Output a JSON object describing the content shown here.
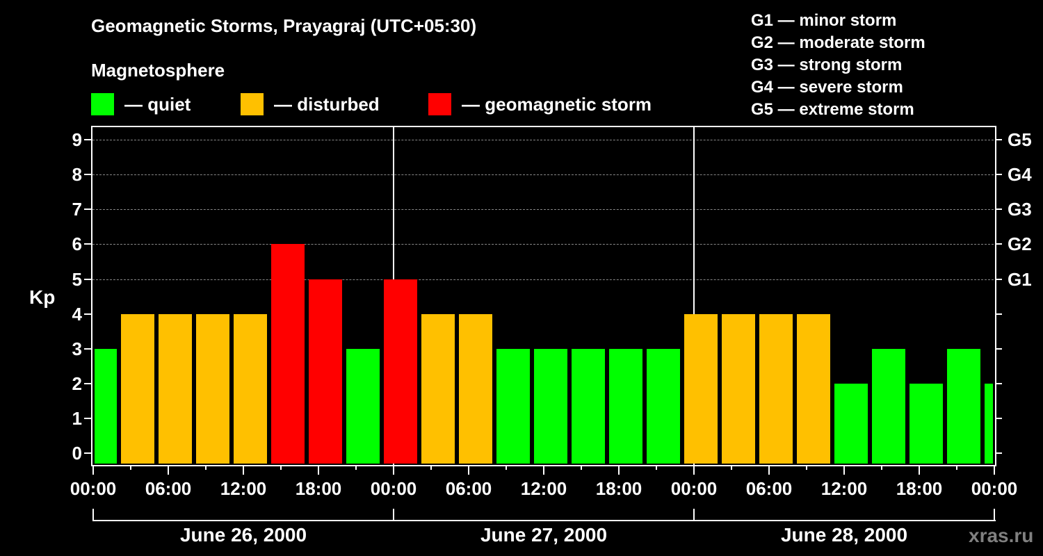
{
  "header": {
    "title": "Geomagnetic Storms, Prayagraj (UTC+05:30)",
    "subtitle": "Magnetosphere"
  },
  "legend": {
    "items": [
      {
        "label": "— quiet",
        "color": "#00ff00"
      },
      {
        "label": "— disturbed",
        "color": "#ffc000"
      },
      {
        "label": "— geomagnetic storm",
        "color": "#ff0000"
      }
    ]
  },
  "g_legend": [
    "G1 — minor storm",
    "G2 — moderate storm",
    "G3 — strong storm",
    "G4 — severe storm",
    "G5 — extreme storm"
  ],
  "axes": {
    "ylabel": "Kp",
    "yticks": [
      "0",
      "1",
      "2",
      "3",
      "4",
      "5",
      "6",
      "7",
      "8",
      "9"
    ],
    "right_ticks": [
      "G1",
      "G2",
      "G3",
      "G4",
      "G5"
    ],
    "xticks": [
      "00:00",
      "06:00",
      "12:00",
      "18:00",
      "00:00",
      "06:00",
      "12:00",
      "18:00",
      "00:00",
      "06:00",
      "12:00",
      "18:00",
      "00:00"
    ],
    "days": [
      "June 26, 2000",
      "June 27, 2000",
      "June 28, 2000"
    ]
  },
  "watermark": "xras.ru",
  "chart_data": {
    "type": "bar",
    "title": "Geomagnetic Storms, Prayagraj (UTC+05:30)",
    "subtitle": "Magnetosphere",
    "xlabel": "",
    "ylabel": "Kp",
    "ylim": [
      0,
      9
    ],
    "grid": true,
    "legend_position": "top",
    "legend": [
      "quiet",
      "disturbed",
      "geomagnetic storm"
    ],
    "right_axis": {
      "G1": 5,
      "G2": 6,
      "G3": 7,
      "G4": 8,
      "G5": 9
    },
    "x_range": [
      "June 26, 2000 00:00",
      "June 29, 2000 00:00"
    ],
    "categories": [
      "Jun26 ~02:30",
      "Jun26 ~05:30",
      "Jun26 ~08:30",
      "Jun26 ~11:30",
      "Jun26 ~14:30",
      "Jun26 ~17:30",
      "Jun26 ~20:30",
      "Jun26 ~23:30",
      "Jun27 ~02:30",
      "Jun27 ~05:30",
      "Jun27 ~08:30",
      "Jun27 ~11:30",
      "Jun27 ~14:30",
      "Jun27 ~17:30",
      "Jun27 ~20:30",
      "Jun27 ~23:30",
      "Jun28 ~02:30",
      "Jun28 ~05:30",
      "Jun28 ~08:30",
      "Jun28 ~11:30",
      "Jun28 ~14:30",
      "Jun28 ~17:30",
      "Jun28 ~20:30",
      "Jun28 ~23:30"
    ],
    "values": [
      3,
      4,
      4,
      4,
      4,
      6,
      5,
      3,
      5,
      4,
      4,
      3,
      3,
      3,
      3,
      3,
      4,
      4,
      4,
      4,
      2,
      3,
      2,
      3
    ],
    "leading_partial_value": 3,
    "trailing_partial_value": 2,
    "colors": {
      "quiet": "#00ff00",
      "disturbed": "#ffc000",
      "storm": "#ff0000"
    }
  }
}
